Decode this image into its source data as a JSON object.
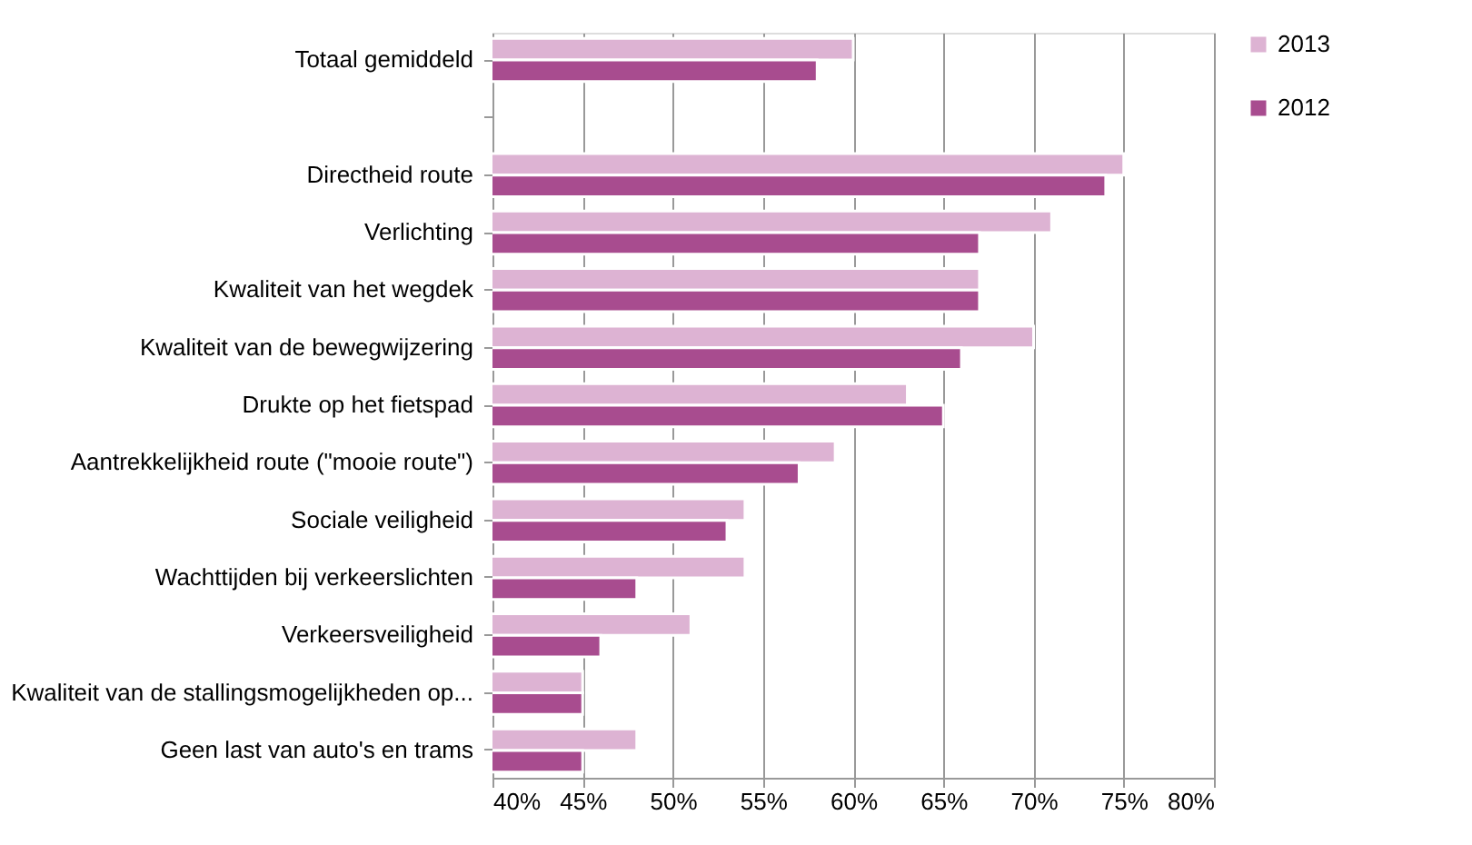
{
  "chart_data": {
    "type": "bar",
    "orientation": "horizontal",
    "categories": [
      "Totaal gemiddeld",
      null,
      "Directheid route",
      "Verlichting",
      "Kwaliteit van het wegdek",
      "Kwaliteit van de bewegwijzering",
      "Drukte op het fietspad",
      "Aantrekkelijkheid route (\"mooie route\")",
      "Sociale veiligheid",
      "Wachttijden bij verkeerslichten",
      "Verkeersveiligheid",
      "Kwaliteit van de stallingsmogelijkheden op...",
      "Geen last van auto's en trams"
    ],
    "series": [
      {
        "name": "2013",
        "color": "#ddb3d3",
        "values": [
          60,
          null,
          75,
          71,
          67,
          70,
          63,
          59,
          54,
          54,
          51,
          45,
          48
        ]
      },
      {
        "name": "2012",
        "color": "#a84c8f",
        "values": [
          58,
          null,
          74,
          67,
          67,
          66,
          65,
          57,
          53,
          48,
          46,
          45,
          45
        ]
      }
    ],
    "xlim": [
      40,
      80
    ],
    "xticks": [
      {
        "value": 40,
        "label": "40%"
      },
      {
        "value": 45,
        "label": "45%"
      },
      {
        "value": 50,
        "label": "50%"
      },
      {
        "value": 55,
        "label": "55%"
      },
      {
        "value": 60,
        "label": "60%"
      },
      {
        "value": 65,
        "label": "65%"
      },
      {
        "value": 70,
        "label": "70%"
      },
      {
        "value": 75,
        "label": "75%"
      },
      {
        "value": 80,
        "label": "80%"
      }
    ],
    "grid": "x",
    "legend": "right"
  }
}
